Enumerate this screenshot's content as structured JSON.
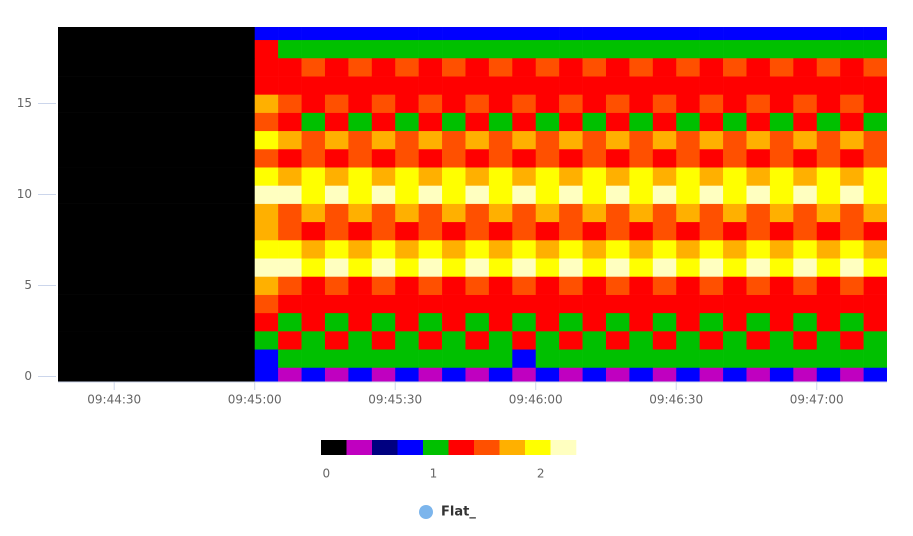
{
  "chart_data": {
    "type": "heatmap",
    "x": [
      "09:44:18",
      "09:45:00",
      "09:45:05",
      "09:45:10",
      "09:45:15",
      "09:45:20",
      "09:45:25",
      "09:45:30",
      "09:45:35",
      "09:45:40",
      "09:45:45",
      "09:45:50",
      "09:45:55",
      "09:46:00",
      "09:46:05",
      "09:46:10",
      "09:46:15",
      "09:46:20",
      "09:46:25",
      "09:46:30",
      "09:46:35",
      "09:46:40",
      "09:46:45",
      "09:46:50",
      "09:46:55",
      "09:47:00",
      "09:47:05",
      "09:47:10",
      "09:47:15"
    ],
    "xlim": [
      "09:44:18",
      "09:47:15"
    ],
    "xticks": [
      "09:44:30",
      "09:45:00",
      "09:45:30",
      "09:46:00",
      "09:46:30",
      "09:47:00"
    ],
    "ylim": [
      -0.3,
      19.2
    ],
    "yticks": [
      0,
      5,
      10,
      15
    ],
    "z": [
      [
        0,
        0.79,
        0.31,
        0.79,
        0.31,
        0.79,
        0.31,
        0.79,
        0.31,
        0.79,
        0.31,
        0.79,
        0.31,
        0.79,
        0.31,
        0.79,
        0.31,
        0.79,
        0.31,
        0.79,
        0.31,
        0.79,
        0.31,
        0.79,
        0.31,
        0.79,
        0.31,
        0.79
      ],
      [
        0,
        0.79,
        1.02,
        1.02,
        1.02,
        1.02,
        1.02,
        1.02,
        1.02,
        1.02,
        1.02,
        1.02,
        0.79,
        1.02,
        1.02,
        1.02,
        1.02,
        1.02,
        1.02,
        1.02,
        1.02,
        1.02,
        1.02,
        1.02,
        1.02,
        1.02,
        1.02,
        1.02
      ],
      [
        0,
        1.02,
        1.26,
        1.02,
        1.26,
        1.02,
        1.26,
        1.02,
        1.26,
        1.02,
        1.26,
        1.02,
        1.26,
        1.02,
        1.26,
        1.02,
        1.26,
        1.02,
        1.26,
        1.02,
        1.26,
        1.02,
        1.26,
        1.02,
        1.26,
        1.02,
        1.26,
        1.02
      ],
      [
        0,
        1.26,
        1.02,
        1.26,
        1.02,
        1.26,
        1.02,
        1.26,
        1.02,
        1.26,
        1.02,
        1.26,
        1.02,
        1.26,
        1.02,
        1.26,
        1.02,
        1.26,
        1.02,
        1.26,
        1.02,
        1.26,
        1.02,
        1.26,
        1.02,
        1.26,
        1.02,
        1.26
      ],
      [
        0,
        1.5,
        1.26,
        1.26,
        1.26,
        1.26,
        1.26,
        1.26,
        1.26,
        1.26,
        1.26,
        1.26,
        1.26,
        1.26,
        1.26,
        1.26,
        1.26,
        1.26,
        1.26,
        1.26,
        1.26,
        1.26,
        1.26,
        1.26,
        1.26,
        1.26,
        1.26,
        1.26
      ],
      [
        0,
        1.74,
        1.5,
        1.26,
        1.5,
        1.26,
        1.5,
        1.26,
        1.5,
        1.26,
        1.5,
        1.26,
        1.5,
        1.26,
        1.5,
        1.26,
        1.5,
        1.26,
        1.5,
        1.26,
        1.5,
        1.26,
        1.5,
        1.26,
        1.5,
        1.26,
        1.5,
        1.26
      ],
      [
        0,
        2.21,
        2.21,
        1.98,
        2.21,
        1.98,
        2.21,
        1.98,
        2.21,
        1.98,
        2.21,
        1.98,
        2.21,
        1.98,
        2.21,
        1.98,
        2.21,
        1.98,
        2.21,
        1.98,
        2.21,
        1.98,
        2.21,
        1.98,
        2.21,
        1.98,
        2.21,
        1.98
      ],
      [
        0,
        1.98,
        1.98,
        1.74,
        1.98,
        1.74,
        1.98,
        1.74,
        1.98,
        1.74,
        1.98,
        1.74,
        1.98,
        1.74,
        1.98,
        1.74,
        1.98,
        1.74,
        1.98,
        1.74,
        1.98,
        1.74,
        1.98,
        1.74,
        1.98,
        1.74,
        1.98,
        1.74
      ],
      [
        0,
        1.74,
        1.5,
        1.26,
        1.5,
        1.26,
        1.5,
        1.26,
        1.5,
        1.26,
        1.5,
        1.26,
        1.5,
        1.26,
        1.5,
        1.26,
        1.5,
        1.26,
        1.5,
        1.26,
        1.5,
        1.26,
        1.5,
        1.26,
        1.5,
        1.26,
        1.5,
        1.26
      ],
      [
        0,
        1.74,
        1.5,
        1.74,
        1.5,
        1.74,
        1.5,
        1.74,
        1.5,
        1.74,
        1.5,
        1.74,
        1.5,
        1.74,
        1.5,
        1.74,
        1.5,
        1.74,
        1.5,
        1.74,
        1.5,
        1.74,
        1.5,
        1.74,
        1.5,
        1.74,
        1.5,
        1.74
      ],
      [
        0,
        2.21,
        2.21,
        1.98,
        2.21,
        1.98,
        2.21,
        1.98,
        2.21,
        1.98,
        2.21,
        1.98,
        2.21,
        1.98,
        2.21,
        1.98,
        2.21,
        1.98,
        2.21,
        1.98,
        2.21,
        1.98,
        2.21,
        1.98,
        2.21,
        1.98,
        2.21,
        1.98
      ],
      [
        0,
        1.98,
        1.74,
        1.98,
        1.74,
        1.98,
        1.74,
        1.98,
        1.74,
        1.98,
        1.74,
        1.98,
        1.74,
        1.98,
        1.74,
        1.98,
        1.74,
        1.98,
        1.74,
        1.98,
        1.74,
        1.98,
        1.74,
        1.98,
        1.74,
        1.98,
        1.74,
        1.98
      ],
      [
        0,
        1.5,
        1.26,
        1.5,
        1.26,
        1.5,
        1.26,
        1.5,
        1.26,
        1.5,
        1.26,
        1.5,
        1.26,
        1.5,
        1.26,
        1.5,
        1.26,
        1.5,
        1.26,
        1.5,
        1.26,
        1.5,
        1.26,
        1.5,
        1.26,
        1.5,
        1.26,
        1.5
      ],
      [
        0,
        1.98,
        1.74,
        1.5,
        1.74,
        1.5,
        1.74,
        1.5,
        1.74,
        1.5,
        1.74,
        1.5,
        1.74,
        1.5,
        1.74,
        1.5,
        1.74,
        1.5,
        1.74,
        1.5,
        1.74,
        1.5,
        1.74,
        1.5,
        1.74,
        1.5,
        1.74,
        1.5
      ],
      [
        0,
        1.5,
        1.26,
        1.02,
        1.26,
        1.02,
        1.26,
        1.02,
        1.26,
        1.02,
        1.26,
        1.02,
        1.26,
        1.02,
        1.26,
        1.02,
        1.26,
        1.02,
        1.26,
        1.02,
        1.26,
        1.02,
        1.26,
        1.02,
        1.26,
        1.02,
        1.26,
        1.02
      ],
      [
        0,
        1.74,
        1.5,
        1.26,
        1.5,
        1.26,
        1.5,
        1.26,
        1.5,
        1.26,
        1.5,
        1.26,
        1.5,
        1.26,
        1.5,
        1.26,
        1.5,
        1.26,
        1.5,
        1.26,
        1.5,
        1.26,
        1.5,
        1.26,
        1.5,
        1.26,
        1.5,
        1.26
      ],
      [
        0,
        1.26,
        1.26,
        1.26,
        1.26,
        1.26,
        1.26,
        1.26,
        1.26,
        1.26,
        1.26,
        1.26,
        1.26,
        1.26,
        1.26,
        1.26,
        1.26,
        1.26,
        1.26,
        1.26,
        1.26,
        1.26,
        1.26,
        1.26,
        1.26,
        1.26,
        1.26,
        1.26
      ],
      [
        0,
        1.26,
        1.26,
        1.5,
        1.26,
        1.5,
        1.26,
        1.5,
        1.26,
        1.5,
        1.26,
        1.5,
        1.26,
        1.5,
        1.26,
        1.5,
        1.26,
        1.5,
        1.26,
        1.5,
        1.26,
        1.5,
        1.26,
        1.5,
        1.26,
        1.5,
        1.26,
        1.5
      ],
      [
        0,
        1.26,
        1.02,
        1.02,
        1.02,
        1.02,
        1.02,
        1.02,
        1.02,
        1.02,
        1.02,
        1.02,
        1.02,
        1.02,
        1.02,
        1.02,
        1.02,
        1.02,
        1.02,
        1.02,
        1.02,
        1.02,
        1.02,
        1.02,
        1.02,
        1.02,
        1.02,
        1.02
      ],
      [
        0,
        0.79,
        0.79,
        0.79,
        0.79,
        0.79,
        0.79,
        0.79,
        0.79,
        0.79,
        0.79,
        0.79,
        0.79,
        0.79,
        0.79,
        0.79,
        0.79,
        0.79,
        0.79,
        0.79,
        0.79,
        0.79,
        0.79,
        0.79,
        0.79,
        0.79,
        0.79,
        0.79
      ]
    ],
    "colors": [
      "#000000",
      "#c000c0",
      "#000080",
      "#0000ff",
      "#00c000",
      "#ff0000",
      "#ff5000",
      "#ffb000",
      "#ffff00",
      "#ffffc0"
    ],
    "clim": [
      -0.05,
      2.33
    ],
    "colorbar_ticks": [
      0,
      1,
      2
    ],
    "series": [
      {
        "name": "Flat_",
        "color": "#7cb5ec"
      }
    ]
  }
}
